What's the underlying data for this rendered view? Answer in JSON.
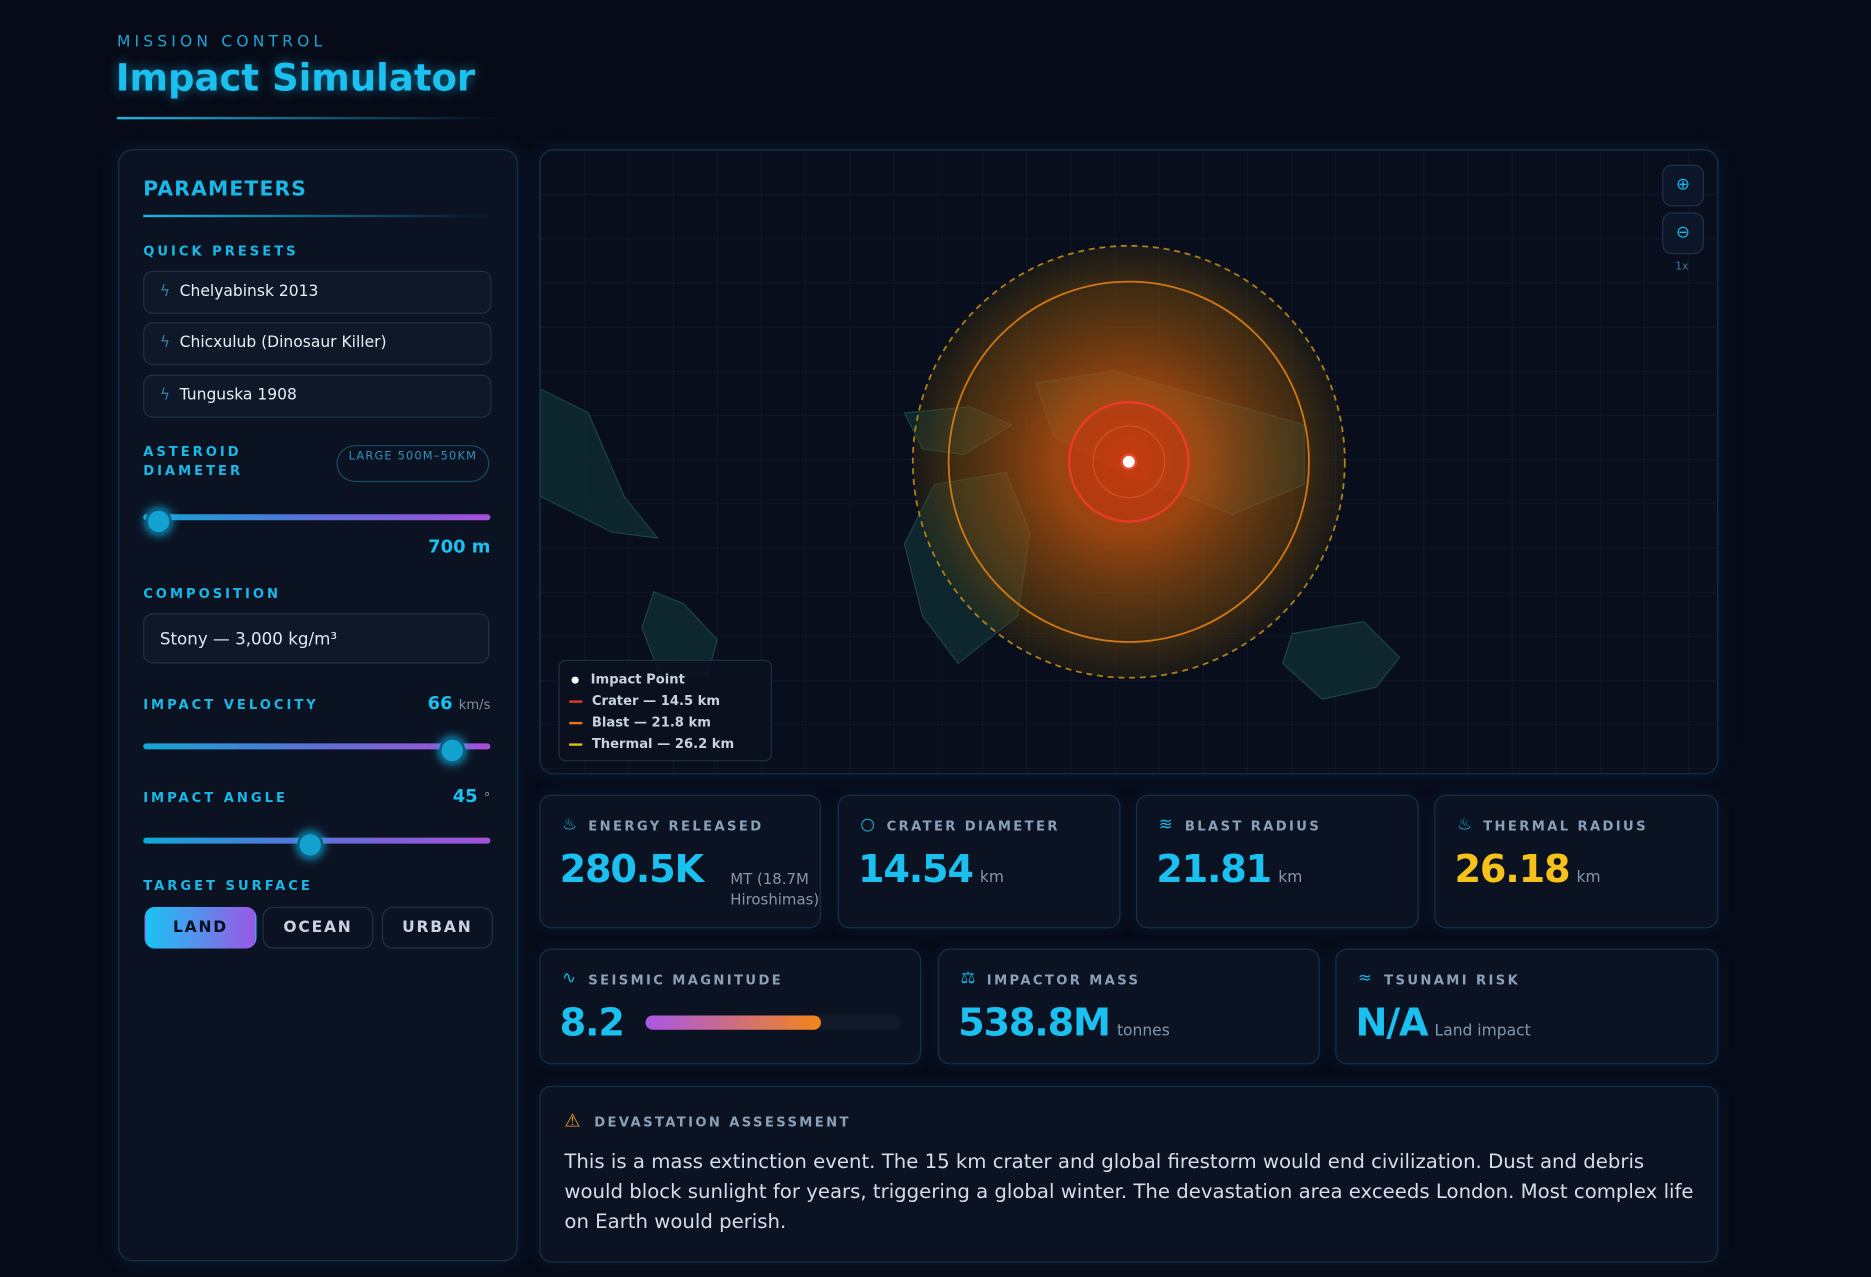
{
  "header": {
    "eyebrow": "MISSION CONTROL",
    "title": "Impact Simulator"
  },
  "parameters": {
    "title": "PARAMETERS",
    "presets_label": "QUICK PRESETS",
    "presets": [
      "Chelyabinsk 2013",
      "Chicxulub (Dinosaur Killer)",
      "Tunguska 1908"
    ],
    "diameter": {
      "label": "ASTEROID DIAMETER",
      "badge": "LARGE 500M–50KM",
      "value": "700 m"
    },
    "composition": {
      "label": "COMPOSITION",
      "value": "Stony — 3,000 kg/m³"
    },
    "velocity": {
      "label": "IMPACT VELOCITY",
      "value": "66",
      "unit": "km/s"
    },
    "angle": {
      "label": "IMPACT ANGLE",
      "value": "45",
      "unit": "°"
    },
    "target": {
      "label": "TARGET SURFACE",
      "options": [
        "LAND",
        "OCEAN",
        "URBAN"
      ]
    }
  },
  "map": {
    "zoom": "1x",
    "legend": [
      "Impact Point",
      "Crater — 14.5 km",
      "Blast — 21.8 km",
      "Thermal — 26.2 km"
    ]
  },
  "stats": [
    {
      "label": "ENERGY RELEASED",
      "value": "280.5K",
      "unit": "MT (18.7M Hiroshimas)"
    },
    {
      "label": "CRATER DIAMETER",
      "value": "14.54",
      "unit": "km"
    },
    {
      "label": "BLAST RADIUS",
      "value": "21.81",
      "unit": "km"
    },
    {
      "label": "THERMAL RADIUS",
      "value": "26.18",
      "unit": "km"
    },
    {
      "label": "SEISMIC MAGNITUDE",
      "value": "8.2"
    },
    {
      "label": "IMPACTOR MASS",
      "value": "538.8M",
      "unit": "tonnes"
    },
    {
      "label": "TSUNAMI RISK",
      "value": "N/A",
      "unit": "Land impact"
    }
  ],
  "assessment": {
    "title": "DEVASTATION ASSESSMENT",
    "text": "This is a mass extinction event. The 15 km crater and global firestorm would end civilization. Dust and debris would block sunlight for years, triggering a global winter. The devastation area exceeds London. Most complex life on Earth would perish."
  }
}
